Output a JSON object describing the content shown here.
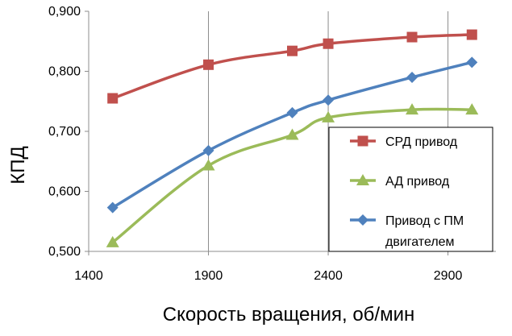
{
  "chart_data": {
    "type": "line",
    "xlabel": "Скорость вращения,  об/мин",
    "ylabel": "КПД",
    "xlim": [
      1400,
      3100
    ],
    "ylim": [
      0.5,
      0.9
    ],
    "x_ticks": [
      1400,
      1900,
      2400,
      2900
    ],
    "x_tick_labels": [
      "1400",
      "1900",
      "2400",
      "2900"
    ],
    "y_ticks": [
      0.5,
      0.6,
      0.7,
      0.8,
      0.9
    ],
    "y_tick_labels": [
      "0,500",
      "0,600",
      "0,700",
      "0,800",
      "0,900"
    ],
    "grid": "vertical",
    "legend_position": "right",
    "series": [
      {
        "name": "СРД привод",
        "color": "#c0504d",
        "marker": "square",
        "x": [
          1500,
          1900,
          2250,
          2400,
          2750,
          3000
        ],
        "y": [
          0.755,
          0.811,
          0.834,
          0.846,
          0.857,
          0.861
        ]
      },
      {
        "name": "АД привод",
        "color": "#9bbb59",
        "marker": "triangle",
        "x": [
          1500,
          1900,
          2250,
          2400,
          2750,
          3000
        ],
        "y": [
          0.515,
          0.643,
          0.694,
          0.723,
          0.736,
          0.736
        ]
      },
      {
        "name": "Привод с ПМ двигателем",
        "legend_lines": [
          "Привод с ПМ",
          "двигателем"
        ],
        "color": "#4f81bd",
        "marker": "diamond",
        "x": [
          1500,
          1900,
          2250,
          2400,
          2750,
          3000
        ],
        "y": [
          0.573,
          0.668,
          0.731,
          0.752,
          0.79,
          0.815
        ]
      }
    ]
  }
}
